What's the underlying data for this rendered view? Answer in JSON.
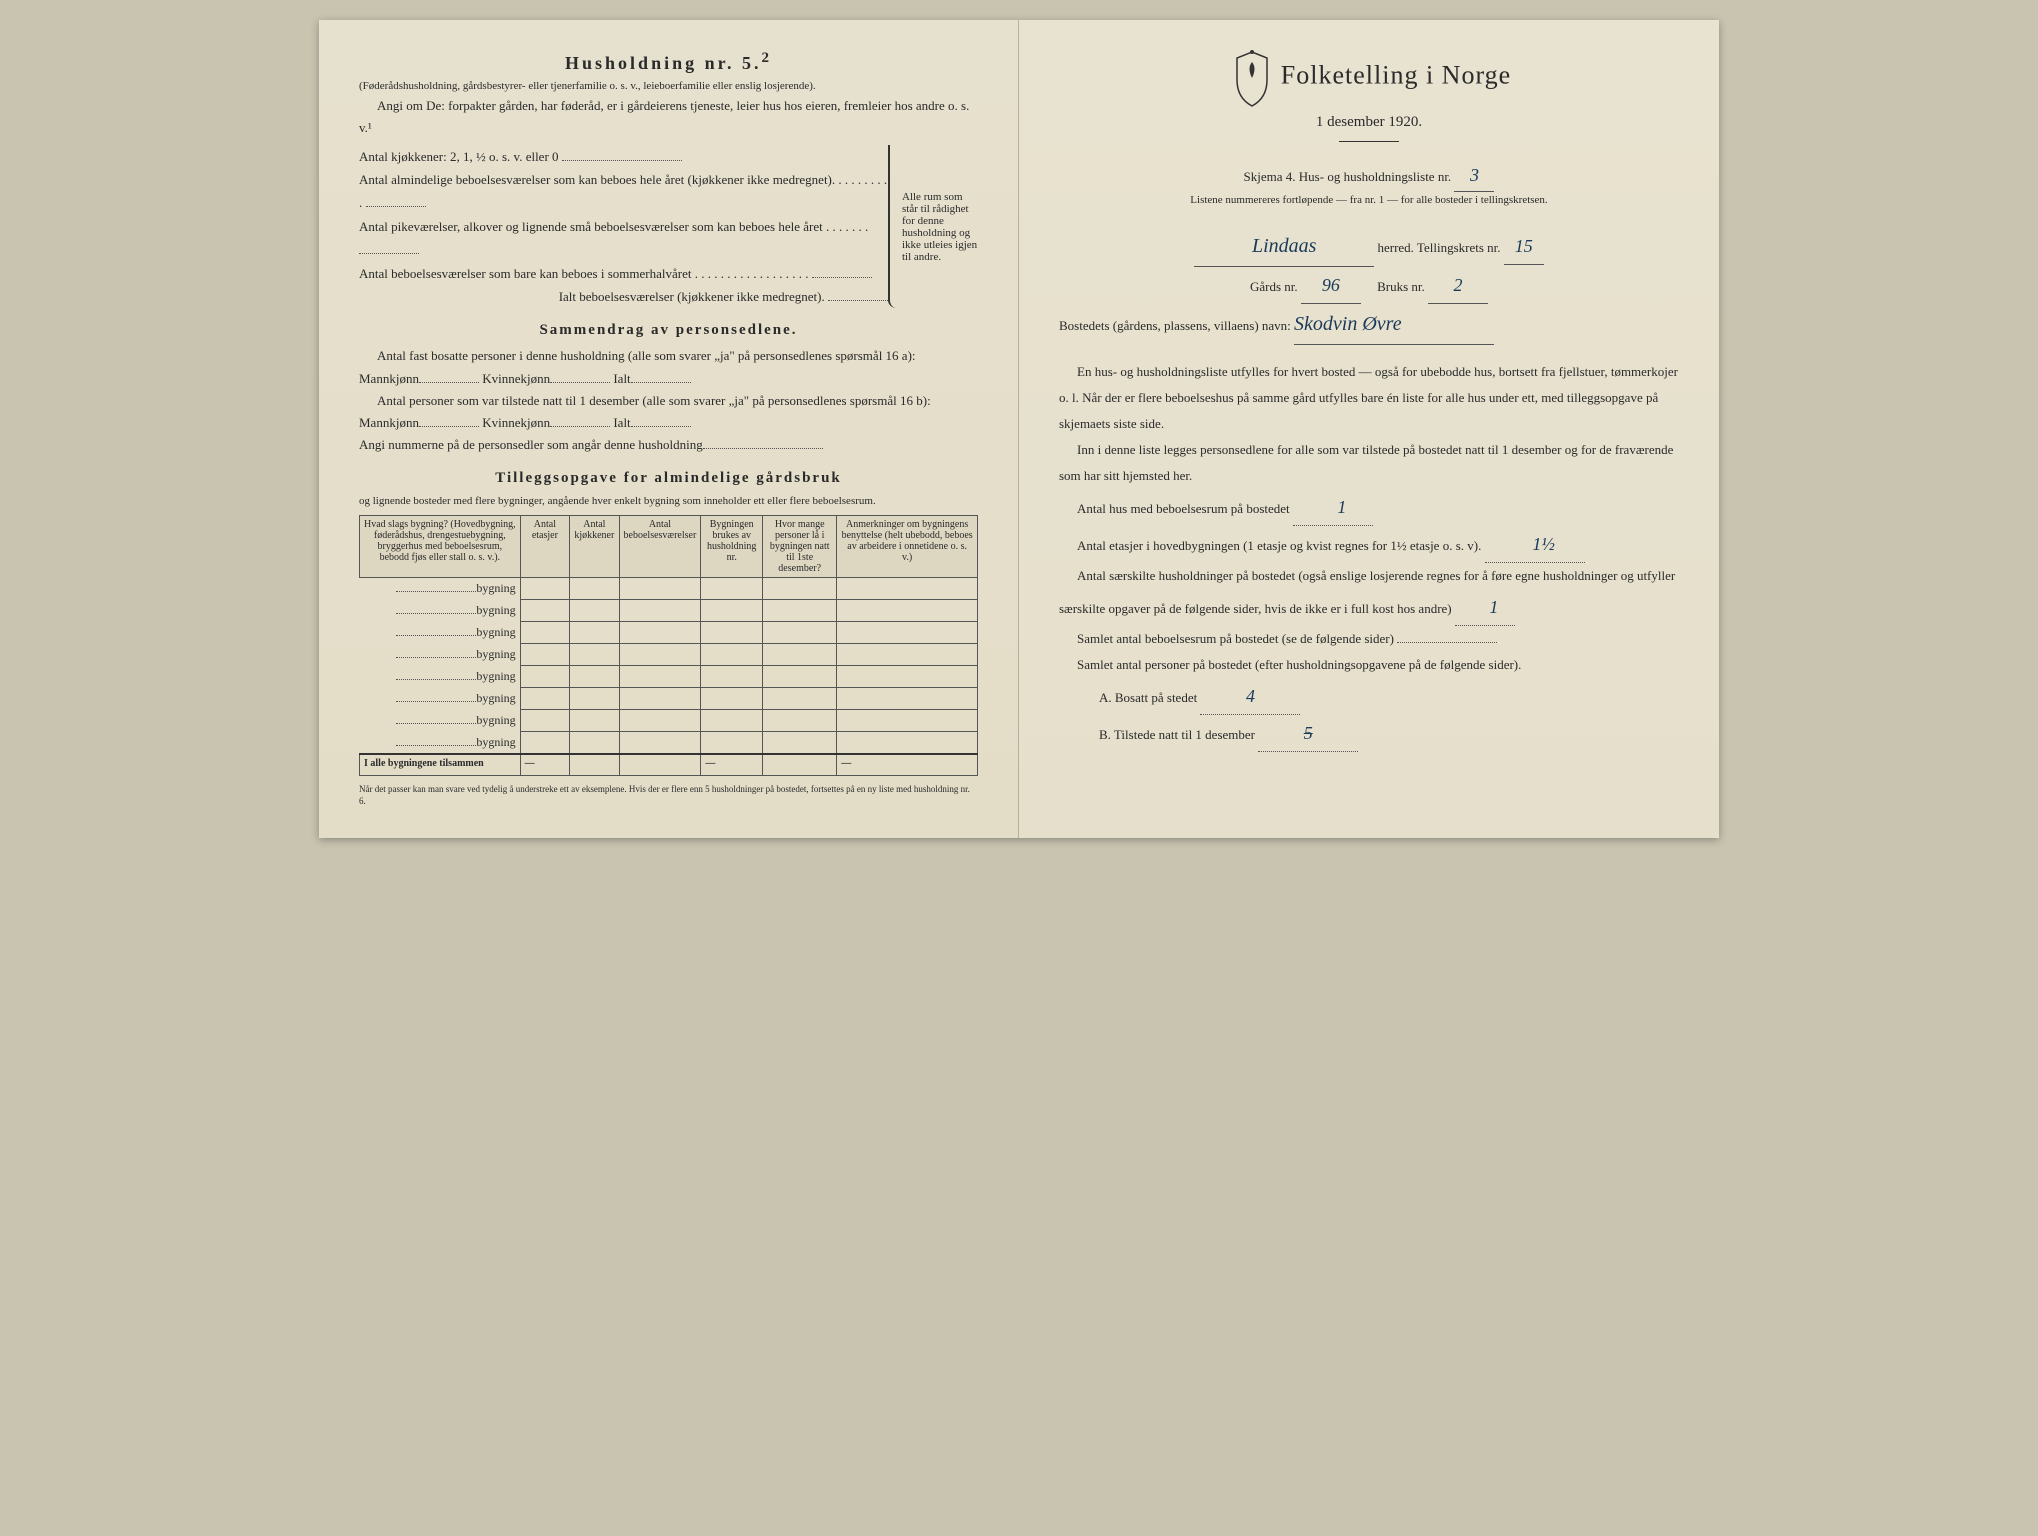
{
  "left": {
    "heading": "Husholdning nr. 5.",
    "heading_sup": "2",
    "sub1": "(Føderådshusholdning, gårdsbestyrer- eller tjenerfamilie o. s. v., leieboerfamilie eller enslig losjerende).",
    "sub2": "Angi om De:  forpakter gården, har føderåd, er i gårdeierens tjeneste, leier hus hos eieren, fremleier hos andre o. s. v.¹",
    "kitchen_label": "Antal kjøkkener: 2, 1, ½ o. s. v. eller 0",
    "rooms1": "Antal almindelige beboelsesværelser som kan beboes hele året (kjøkkener ikke medregnet). . . . . . . . . .",
    "rooms2": "Antal pikeværelser, alkover og lignende små beboelsesværelser som kan beboes hele året . . . . . . .",
    "rooms3": "Antal beboelsesværelser som bare kan beboes i sommerhalvåret . . . . . . . . . . . . . . . . . .",
    "rooms_total": "Ialt beboelsesværelser (kjøkkener ikke medregnet).",
    "brace_text": "Alle rum som står til rådighet for denne husholdning og ikke utleies igjen til andre.",
    "summary_heading": "Sammendrag av personsedlene.",
    "summary1a": "Antal fast bosatte personer i denne husholdning (alle som svarer „ja\" på personsedlenes spørsmål 16 a): Mannkjønn",
    "summary1b": "Kvinnekjønn",
    "summary1c": "Ialt",
    "summary2a": "Antal personer som var tilstede natt til 1 desember (alle som svarer „ja\" på personsedlenes spørsmål 16 b): Mannkjønn",
    "summary2b": "Kvinnekjønn",
    "summary2c": "Ialt",
    "summary3": "Angi nummerne på de personsedler som angår denne husholdning",
    "tillegg_heading": "Tilleggsopgave for almindelige gårdsbruk",
    "tillegg_sub": "og lignende bosteder med flere bygninger, angående hver enkelt bygning som inneholder ett eller flere beboelsesrum.",
    "table": {
      "headers": [
        "Hvad slags bygning?\n(Hovedbygning, føderådshus, drengestuebygning, bryggerhus med beboelsesrum, bebodd fjøs eller stall o. s. v.).",
        "Antal etasjer",
        "Antal kjøkkener",
        "Antal beboelsesværelser",
        "Bygningen brukes av husholdning nr.",
        "Hvor mange personer lå i bygningen natt til 1ste desember?",
        "Anmerkninger om bygningens benyttelse (helt ubebodd, beboes av arbeidere i onnetidene o. s. v.)"
      ],
      "row_label": "bygning",
      "row_count": 8,
      "total_label": "I alle bygningene tilsammen"
    },
    "footnote": "Når det passer kan man svare ved tydelig å understreke ett av eksemplene.\nHvis der er flere enn 5 husholdninger på bostedet, fortsettes på en ny liste med husholdning nr. 6."
  },
  "right": {
    "title": "Folketelling i Norge",
    "date": "1 desember 1920.",
    "skjema_line": "Skjema 4.  Hus- og husholdningsliste nr.",
    "skjema_nr": "3",
    "listnote": "Listene nummereres fortløpende — fra nr. 1 — for alle bosteder i tellingskretsen.",
    "herred_value": "Lindaas",
    "herred_label": "herred.   Tellingskrets nr.",
    "tellingskrets_nr": "15",
    "gards_label": "Gårds nr.",
    "gards_nr": "96",
    "bruks_label": "Bruks nr.",
    "bruks_nr": "2",
    "bosted_label": "Bostedets (gårdens, plassens, villaens) navn:",
    "bosted_value": "Skodvin Øvre",
    "para1": "En hus- og husholdningsliste utfylles for hvert bosted — også for ubebodde hus, bortsett fra fjellstuer, tømmerkojer o. l.  Når der er flere beboelseshus på samme gård utfylles bare én liste for alle hus under ett, med tilleggsopgave på skjemaets siste side.",
    "para2": "Inn i denne liste legges personsedlene for alle som var tilstede på bostedet natt til 1 desember og for de fraværende som har sitt hjemsted her.",
    "q1_label": "Antal hus med beboelsesrum på bostedet",
    "q1_value": "1",
    "q2_label": "Antal etasjer i hovedbygningen (1 etasje og kvist regnes for 1½ etasje o. s. v).",
    "q2_value": "1½",
    "q3_label": "Antal særskilte husholdninger på bostedet (også enslige losjerende regnes for å føre egne husholdninger og utfyller særskilte opgaver på de følgende sider, hvis de ikke er i full kost hos andre)",
    "q3_value": "1",
    "q4_label": "Samlet antal beboelsesrum på bostedet (se de følgende sider)",
    "q5_label": "Samlet antal personer på bostedet (efter husholdningsopgavene på de følgende sider).",
    "qA_label": "A.  Bosatt på stedet",
    "qA_value": "4",
    "qB_label": "B.  Tilstede natt til 1 desember",
    "qB_value": "5"
  },
  "colors": {
    "paper": "#e8e2d0",
    "ink": "#2a2a2a",
    "handwriting": "#1a3a5a"
  }
}
